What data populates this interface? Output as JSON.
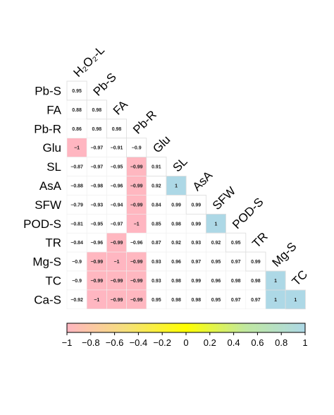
{
  "chart_data": {
    "type": "heatmap",
    "variables": [
      "H₂O₂-L",
      "Pb-S",
      "FA",
      "Pb-R",
      "Glu",
      "SL",
      "AsA",
      "SFW",
      "POD-S",
      "TR",
      "Mg-S",
      "TC",
      "Ca-S"
    ],
    "row_labels": [
      "Pb-S",
      "FA",
      "Pb-R",
      "Glu",
      "SL",
      "AsA",
      "SFW",
      "POD-S",
      "TR",
      "Mg-S",
      "TC",
      "Ca-S"
    ],
    "col_labels": [
      "H₂O₂-L",
      "Pb-S",
      "FA",
      "Pb-R",
      "Glu",
      "SL",
      "AsA",
      "SFW",
      "POD-S",
      "TR",
      "Mg-S",
      "TC"
    ],
    "values": [
      [
        0.95
      ],
      [
        0.88,
        0.98
      ],
      [
        0.86,
        0.98,
        0.98
      ],
      [
        -1,
        -0.97,
        -0.91,
        -0.9
      ],
      [
        -0.87,
        -0.97,
        -0.95,
        -0.99,
        0.91
      ],
      [
        -0.88,
        -0.98,
        -0.96,
        -0.99,
        0.92,
        1
      ],
      [
        -0.79,
        -0.93,
        -0.94,
        -0.99,
        0.84,
        0.99,
        0.99
      ],
      [
        -0.81,
        -0.95,
        -0.97,
        -1,
        0.85,
        0.98,
        0.99,
        1
      ],
      [
        -0.84,
        -0.96,
        -0.99,
        -0.96,
        0.87,
        0.92,
        0.93,
        0.92,
        0.95
      ],
      [
        -0.9,
        -0.99,
        -1,
        -0.99,
        0.93,
        0.96,
        0.97,
        0.95,
        0.97,
        0.99
      ],
      [
        -0.9,
        -0.99,
        -0.99,
        -0.99,
        0.93,
        0.98,
        0.99,
        0.96,
        0.98,
        0.98,
        1
      ],
      [
        -0.92,
        -1,
        -0.99,
        -0.99,
        0.95,
        0.98,
        0.98,
        0.95,
        0.97,
        0.97,
        1,
        1
      ]
    ],
    "value_labels": [
      [
        "0.95"
      ],
      [
        "0.88",
        "0.98"
      ],
      [
        "0.86",
        "0.98",
        "0.98"
      ],
      [
        "−1",
        "−0.97",
        "−0.91",
        "−0.9"
      ],
      [
        "−0.87",
        "−0.97",
        "−0.95",
        "−0.99",
        "0.91"
      ],
      [
        "−0.88",
        "−0.98",
        "−0.96",
        "−0.99",
        "0.92",
        "1"
      ],
      [
        "−0.79",
        "−0.93",
        "−0.94",
        "−0.99",
        "0.84",
        "0.99",
        "0.99"
      ],
      [
        "−0.81",
        "−0.95",
        "−0.97",
        "−1",
        "0.85",
        "0.98",
        "0.99",
        "1"
      ],
      [
        "−0.84",
        "−0.96",
        "−0.99",
        "−0.96",
        "0.87",
        "0.92",
        "0.93",
        "0.92",
        "0.95"
      ],
      [
        "−0.9",
        "−0.99",
        "−1",
        "−0.99",
        "0.93",
        "0.96",
        "0.97",
        "0.95",
        "0.97",
        "0.99"
      ],
      [
        "−0.9",
        "−0.99",
        "−0.99",
        "−0.99",
        "0.93",
        "0.98",
        "0.99",
        "0.96",
        "0.98",
        "0.98",
        "1"
      ],
      [
        "−0.92",
        "−1",
        "−0.99",
        "−0.99",
        "0.95",
        "0.98",
        "0.98",
        "0.95",
        "0.97",
        "0.97",
        "1",
        "1"
      ]
    ],
    "colorbar": {
      "range": [
        -1,
        1
      ],
      "ticks": [
        -1,
        -0.8,
        -0.6,
        -0.4,
        -0.2,
        0,
        0.2,
        0.4,
        0.6,
        0.8,
        1
      ],
      "tick_labels": [
        "−1",
        "−0.8",
        "−0.6",
        "−0.4",
        "−0.2",
        "0",
        "0.2",
        "0.4",
        "0.6",
        "0.8",
        "1"
      ],
      "orientation": "horizontal",
      "placement": "bottom"
    },
    "color_scale": {
      "stops": [
        {
          "value": -1,
          "color": "#ffb6c1"
        },
        {
          "value": -0.5,
          "color": "#f5e07a"
        },
        {
          "value": 0,
          "color": "#ffff00"
        },
        {
          "value": 0.5,
          "color": "#c0e8a0"
        },
        {
          "value": 1,
          "color": "#add8e6"
        }
      ]
    },
    "shading": "cells with |r| >= 0.999 are filled; other cells are white",
    "layout": "lower-triangle",
    "grid": true
  }
}
